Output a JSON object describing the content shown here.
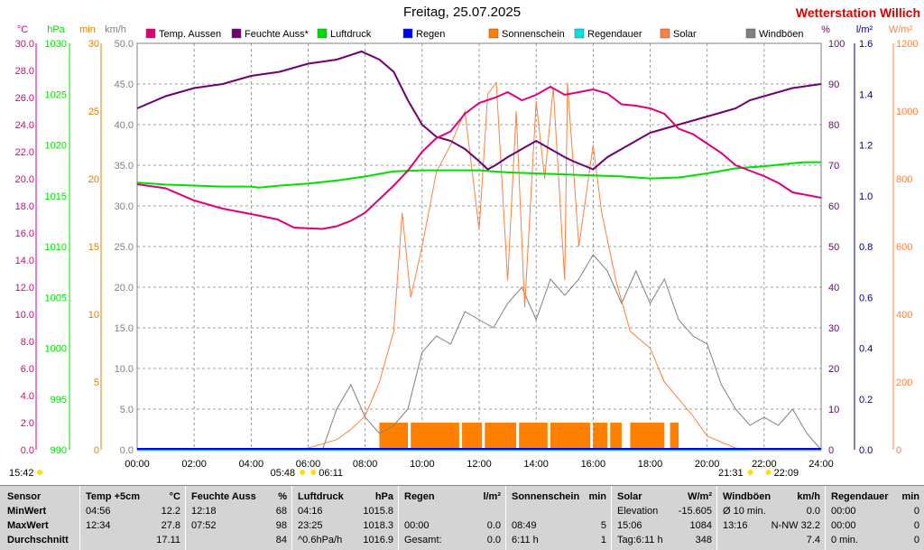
{
  "title": "Freitag, 25.07.2025",
  "station": "Wetterstation Willich",
  "colors": {
    "temp": "#e0007a",
    "humid": "#700070",
    "pressure": "#00e000",
    "rain": "#0000ff",
    "sunshine": "#ff8000",
    "raindur": "#00e0e0",
    "solar": "#ff8040",
    "gust": "#808080",
    "grid": "#808080",
    "axis_min": "#e08000",
    "axis_kmh": "#808080",
    "axis_lm2": "#000080"
  },
  "legend": [
    {
      "label": "Temp. Aussen",
      "color": "#e0007a"
    },
    {
      "label": "Feuchte Auss*",
      "color": "#700070"
    },
    {
      "label": "Luftdruck",
      "color": "#00e000"
    },
    {
      "label": "Regen",
      "color": "#0000ff"
    },
    {
      "label": "Sonnenschein",
      "color": "#ff8000"
    },
    {
      "label": "Regendauer",
      "color": "#00e0e0"
    },
    {
      "label": "Solar",
      "color": "#ff8040"
    },
    {
      "label": "Windböen",
      "color": "#808080"
    }
  ],
  "axes": {
    "units": {
      "temp": "°C",
      "hpa": "hPa",
      "min": "min",
      "kmh": "km/h",
      "pct": "%",
      "lm2": "l/m²",
      "wm2": "W/m²"
    },
    "temp_ticks": [
      "30.0",
      "28.0",
      "26.0",
      "24.0",
      "22.0",
      "20.0",
      "18.0",
      "16.0",
      "14.0",
      "12.0",
      "10.0",
      "8.0",
      "6.0",
      "4.0",
      "2.0",
      "0.0"
    ],
    "hpa_ticks": [
      "1030",
      "1025",
      "1020",
      "1015",
      "1010",
      "1005",
      "1000",
      "995",
      "990"
    ],
    "min_ticks": [
      "30",
      "25",
      "20",
      "15",
      "10",
      "5",
      "0"
    ],
    "kmh_ticks": [
      "50.0",
      "45.0",
      "40.0",
      "35.0",
      "30.0",
      "25.0",
      "20.0",
      "15.0",
      "10.0",
      "5.0",
      "0.0"
    ],
    "pct_ticks": [
      "100",
      "90",
      "80",
      "70",
      "60",
      "50",
      "40",
      "30",
      "20",
      "10",
      "0"
    ],
    "lm2_ticks": [
      "1.6",
      "1.4",
      "1.2",
      "1.0",
      "0.8",
      "0.6",
      "0.4",
      "0.2",
      "0.0"
    ],
    "wm2_ticks": [
      "1200",
      "1000",
      "800",
      "600",
      "400",
      "200",
      "0"
    ],
    "x_ticks": [
      "00:00",
      "02:00",
      "04:00",
      "06:00",
      "08:00",
      "10:00",
      "12:00",
      "14:00",
      "16:00",
      "18:00",
      "20:00",
      "22:00",
      "24:00"
    ]
  },
  "sun": {
    "moonrise": "15:42",
    "dawn": "05:48",
    "sunrise": "06:11",
    "dusk": "21:31",
    "sunset": "22:09"
  },
  "chart_data": {
    "type": "line",
    "title": "Freitag, 25.07.2025",
    "x_unit": "hour",
    "xlim": [
      0,
      24
    ],
    "series": [
      {
        "name": "Temp. Aussen",
        "unit": "°C",
        "ylim": [
          0,
          30
        ],
        "points": [
          [
            0,
            19.6
          ],
          [
            1,
            19.3
          ],
          [
            2,
            18.4
          ],
          [
            3,
            17.8
          ],
          [
            4,
            17.4
          ],
          [
            4.93,
            17.0
          ],
          [
            5.5,
            16.4
          ],
          [
            6.5,
            16.3
          ],
          [
            7,
            16.5
          ],
          [
            7.5,
            16.9
          ],
          [
            8,
            17.5
          ],
          [
            8.5,
            18.5
          ],
          [
            9,
            19.5
          ],
          [
            9.5,
            20.6
          ],
          [
            10,
            22.0
          ],
          [
            10.5,
            23.0
          ],
          [
            11,
            23.5
          ],
          [
            11.5,
            24.8
          ],
          [
            12,
            25.6
          ],
          [
            12.57,
            26.0
          ],
          [
            13,
            26.4
          ],
          [
            13.5,
            25.8
          ],
          [
            14,
            26.2
          ],
          [
            14.5,
            26.8
          ],
          [
            15,
            26.2
          ],
          [
            15.5,
            26.4
          ],
          [
            16,
            26.6
          ],
          [
            16.5,
            26.3
          ],
          [
            17,
            25.5
          ],
          [
            17.5,
            25.4
          ],
          [
            18,
            25.2
          ],
          [
            18.5,
            24.8
          ],
          [
            19,
            23.7
          ],
          [
            19.5,
            23.3
          ],
          [
            20,
            22.6
          ],
          [
            20.5,
            21.9
          ],
          [
            21,
            21.0
          ],
          [
            21.5,
            20.6
          ],
          [
            22,
            20.2
          ],
          [
            22.5,
            19.7
          ],
          [
            23,
            19.0
          ],
          [
            23.5,
            18.8
          ],
          [
            24,
            18.6
          ]
        ]
      },
      {
        "name": "Feuchte Auss*",
        "unit": "%",
        "ylim": [
          0,
          100
        ],
        "points": [
          [
            0,
            84
          ],
          [
            1,
            87
          ],
          [
            2,
            89
          ],
          [
            3,
            90
          ],
          [
            4,
            92
          ],
          [
            5,
            93
          ],
          [
            6,
            95
          ],
          [
            7,
            96
          ],
          [
            7.87,
            98
          ],
          [
            8.5,
            96
          ],
          [
            9,
            93
          ],
          [
            9.5,
            86
          ],
          [
            10,
            80
          ],
          [
            10.5,
            77
          ],
          [
            11,
            76
          ],
          [
            11.5,
            74
          ],
          [
            12,
            71
          ],
          [
            12.3,
            69
          ],
          [
            12.57,
            70
          ],
          [
            13,
            72
          ],
          [
            13.5,
            74
          ],
          [
            14,
            76
          ],
          [
            14.5,
            74
          ],
          [
            15,
            72
          ],
          [
            15.3,
            71
          ],
          [
            16,
            69
          ],
          [
            16.5,
            72
          ],
          [
            17,
            74
          ],
          [
            17.5,
            76
          ],
          [
            18,
            78
          ],
          [
            18.5,
            79
          ],
          [
            19,
            80
          ],
          [
            19.5,
            81
          ],
          [
            20,
            82
          ],
          [
            20.5,
            83
          ],
          [
            21,
            84
          ],
          [
            21.5,
            86
          ],
          [
            22,
            87
          ],
          [
            22.5,
            88
          ],
          [
            23,
            89
          ],
          [
            24,
            90
          ]
        ]
      },
      {
        "name": "Luftdruck",
        "unit": "hPa",
        "ylim": [
          990,
          1030
        ],
        "points": [
          [
            0,
            1016.3
          ],
          [
            1,
            1016.1
          ],
          [
            2,
            1016.0
          ],
          [
            3,
            1015.9
          ],
          [
            4,
            1015.9
          ],
          [
            4.27,
            1015.8
          ],
          [
            5,
            1016.0
          ],
          [
            6,
            1016.2
          ],
          [
            7,
            1016.5
          ],
          [
            8,
            1016.9
          ],
          [
            9,
            1017.4
          ],
          [
            10,
            1017.5
          ],
          [
            11,
            1017.5
          ],
          [
            12,
            1017.5
          ],
          [
            13,
            1017.3
          ],
          [
            14,
            1017.2
          ],
          [
            15,
            1017.1
          ],
          [
            16,
            1017.0
          ],
          [
            17,
            1016.9
          ],
          [
            18,
            1016.7
          ],
          [
            19,
            1016.8
          ],
          [
            20,
            1017.2
          ],
          [
            21,
            1017.7
          ],
          [
            22,
            1017.9
          ],
          [
            23,
            1018.2
          ],
          [
            23.42,
            1018.3
          ],
          [
            24,
            1018.3
          ]
        ]
      },
      {
        "name": "Solar",
        "unit": "W/m²",
        "ylim": [
          0,
          1200
        ],
        "points": [
          [
            5.5,
            0
          ],
          [
            6,
            5
          ],
          [
            7,
            30
          ],
          [
            7.5,
            60
          ],
          [
            8,
            100
          ],
          [
            8.5,
            200
          ],
          [
            9,
            350
          ],
          [
            9.3,
            700
          ],
          [
            9.6,
            450
          ],
          [
            10,
            600
          ],
          [
            10.5,
            820
          ],
          [
            11,
            900
          ],
          [
            11.5,
            1000
          ],
          [
            12,
            650
          ],
          [
            12.3,
            1050
          ],
          [
            12.6,
            1084
          ],
          [
            13,
            500
          ],
          [
            13.3,
            1000
          ],
          [
            13.6,
            420
          ],
          [
            14,
            1030
          ],
          [
            14.3,
            800
          ],
          [
            14.6,
            1070
          ],
          [
            15,
            500
          ],
          [
            15.1,
            1084
          ],
          [
            15.5,
            600
          ],
          [
            16,
            900
          ],
          [
            16.3,
            700
          ],
          [
            16.8,
            500
          ],
          [
            17.3,
            350
          ],
          [
            18,
            300
          ],
          [
            18.5,
            200
          ],
          [
            19,
            150
          ],
          [
            19.5,
            100
          ],
          [
            20,
            40
          ],
          [
            21,
            5
          ],
          [
            21.5,
            0
          ],
          [
            24,
            0
          ]
        ]
      },
      {
        "name": "Windböen",
        "unit": "km/h",
        "ylim": [
          0,
          50
        ],
        "points": [
          [
            0,
            0
          ],
          [
            6.5,
            0
          ],
          [
            7,
            5
          ],
          [
            7.5,
            8
          ],
          [
            8,
            4
          ],
          [
            8.5,
            2
          ],
          [
            9,
            3
          ],
          [
            9.5,
            5
          ],
          [
            10,
            12
          ],
          [
            10.5,
            14
          ],
          [
            11,
            13
          ],
          [
            11.5,
            17
          ],
          [
            12,
            16
          ],
          [
            12.5,
            15
          ],
          [
            13,
            18
          ],
          [
            13.5,
            20
          ],
          [
            14,
            16
          ],
          [
            14.5,
            21
          ],
          [
            15,
            19
          ],
          [
            15.5,
            21
          ],
          [
            16,
            24
          ],
          [
            16.5,
            22
          ],
          [
            17,
            18
          ],
          [
            17.5,
            22
          ],
          [
            18,
            18
          ],
          [
            18.5,
            21
          ],
          [
            19,
            16
          ],
          [
            19.5,
            14
          ],
          [
            20,
            13
          ],
          [
            20.5,
            8
          ],
          [
            21,
            5
          ],
          [
            21.5,
            3
          ],
          [
            22,
            4
          ],
          [
            22.5,
            3
          ],
          [
            23,
            5
          ],
          [
            23.5,
            2
          ],
          [
            24,
            0
          ]
        ]
      },
      {
        "name": "Sonnenschein",
        "unit": "min",
        "intervals": [
          [
            8.5,
            9.5
          ],
          [
            9.6,
            11.3
          ],
          [
            11.4,
            12.1
          ],
          [
            12.2,
            13.3
          ],
          [
            13.4,
            14.4
          ],
          [
            14.5,
            15.9
          ],
          [
            16.0,
            16.5
          ],
          [
            16.6,
            17.0
          ],
          [
            17.3,
            18.5
          ],
          [
            18.7,
            19.0
          ]
        ]
      },
      {
        "name": "Regen",
        "unit": "l/m²",
        "total": 0.0
      },
      {
        "name": "Regendauer",
        "unit": "min",
        "total": 0
      }
    ]
  },
  "table": {
    "sensor": {
      "header": "Sensor",
      "rows": [
        "MinWert",
        "MaxWert",
        "Durchschnitt"
      ]
    },
    "temp": {
      "header": "Temp +5cm",
      "unit": "°C",
      "rows": [
        [
          "04:56",
          "12.2"
        ],
        [
          "12:34",
          "27.8"
        ],
        [
          "",
          "17.11"
        ]
      ]
    },
    "humid": {
      "header": "Feuchte Auss",
      "unit": "%",
      "rows": [
        [
          "12:18",
          "68"
        ],
        [
          "07:52",
          "98"
        ],
        [
          "",
          "84"
        ]
      ]
    },
    "press": {
      "header": "Luftdruck",
      "unit": "hPa",
      "rows": [
        [
          "04:16",
          "1015.8"
        ],
        [
          "23:25",
          "1018.3"
        ],
        [
          "^0.6hPa/h",
          "1016.9"
        ]
      ]
    },
    "rain": {
      "header": "Regen",
      "unit": "l/m²",
      "rows": [
        [
          "",
          ""
        ],
        [
          "00:00",
          "0.0"
        ],
        [
          "Gesamt:",
          "0.0"
        ]
      ]
    },
    "sun": {
      "header": "Sonnenschein",
      "unit": "min",
      "rows": [
        [
          "",
          ""
        ],
        [
          "08:49",
          "5"
        ],
        [
          "6:11 h",
          "1"
        ]
      ]
    },
    "solar": {
      "header": "Solar",
      "unit": "W/m²",
      "rows": [
        [
          "Elevation",
          "-15.605"
        ],
        [
          "15:06",
          "1084"
        ],
        [
          "Tag:6:11 h",
          "348"
        ]
      ]
    },
    "wind": {
      "header": "Windböen",
      "unit": "km/h",
      "rows": [
        [
          "Ø 10 min.",
          "0.0"
        ],
        [
          "13:16",
          "N-NW 32.2"
        ],
        [
          "",
          "7.4"
        ]
      ]
    },
    "raindur": {
      "header": "Regendauer",
      "unit": "min",
      "rows": [
        [
          "00:00",
          "0"
        ],
        [
          "00:00",
          "0"
        ],
        [
          "0 min.",
          "0"
        ]
      ]
    }
  }
}
